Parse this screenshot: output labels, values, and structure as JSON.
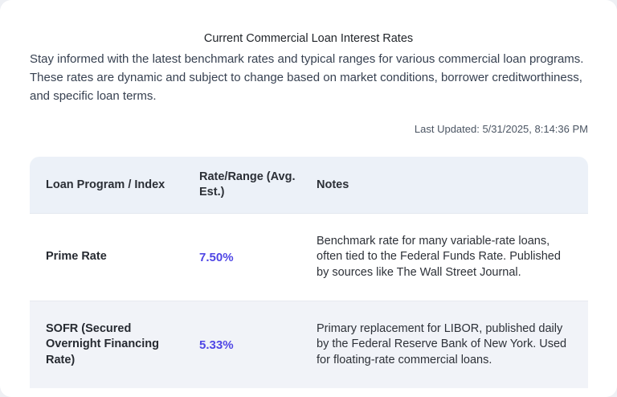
{
  "header": {
    "title": "Current Commercial Loan Interest Rates",
    "description": "Stay informed with the latest benchmark rates and typical ranges for various commercial loan programs. These rates are dynamic and subject to change based on market conditions, borrower creditworthiness, and specific loan terms.",
    "last_updated": "Last Updated: 5/31/2025, 8:14:36 PM"
  },
  "table": {
    "columns": [
      "Loan Program / Index",
      "Rate/Range (Avg. Est.)",
      "Notes"
    ],
    "rows": [
      {
        "program": "Prime Rate",
        "rate": "7.50%",
        "notes": "Benchmark rate for many variable-rate loans, often tied to the Federal Funds Rate. Published by sources like The Wall Street Journal."
      },
      {
        "program": "SOFR (Secured Overnight Financing Rate)",
        "rate": "5.33%",
        "notes": "Primary replacement for LIBOR, published daily by the Federal Reserve Bank of New York. Used for floating-rate commercial loans."
      }
    ]
  },
  "colors": {
    "rate_accent": "#4f46e5",
    "header_bg": "#ecf1f8",
    "alt_row_bg": "#f1f3f8",
    "page_bg": "#eef0f4"
  }
}
